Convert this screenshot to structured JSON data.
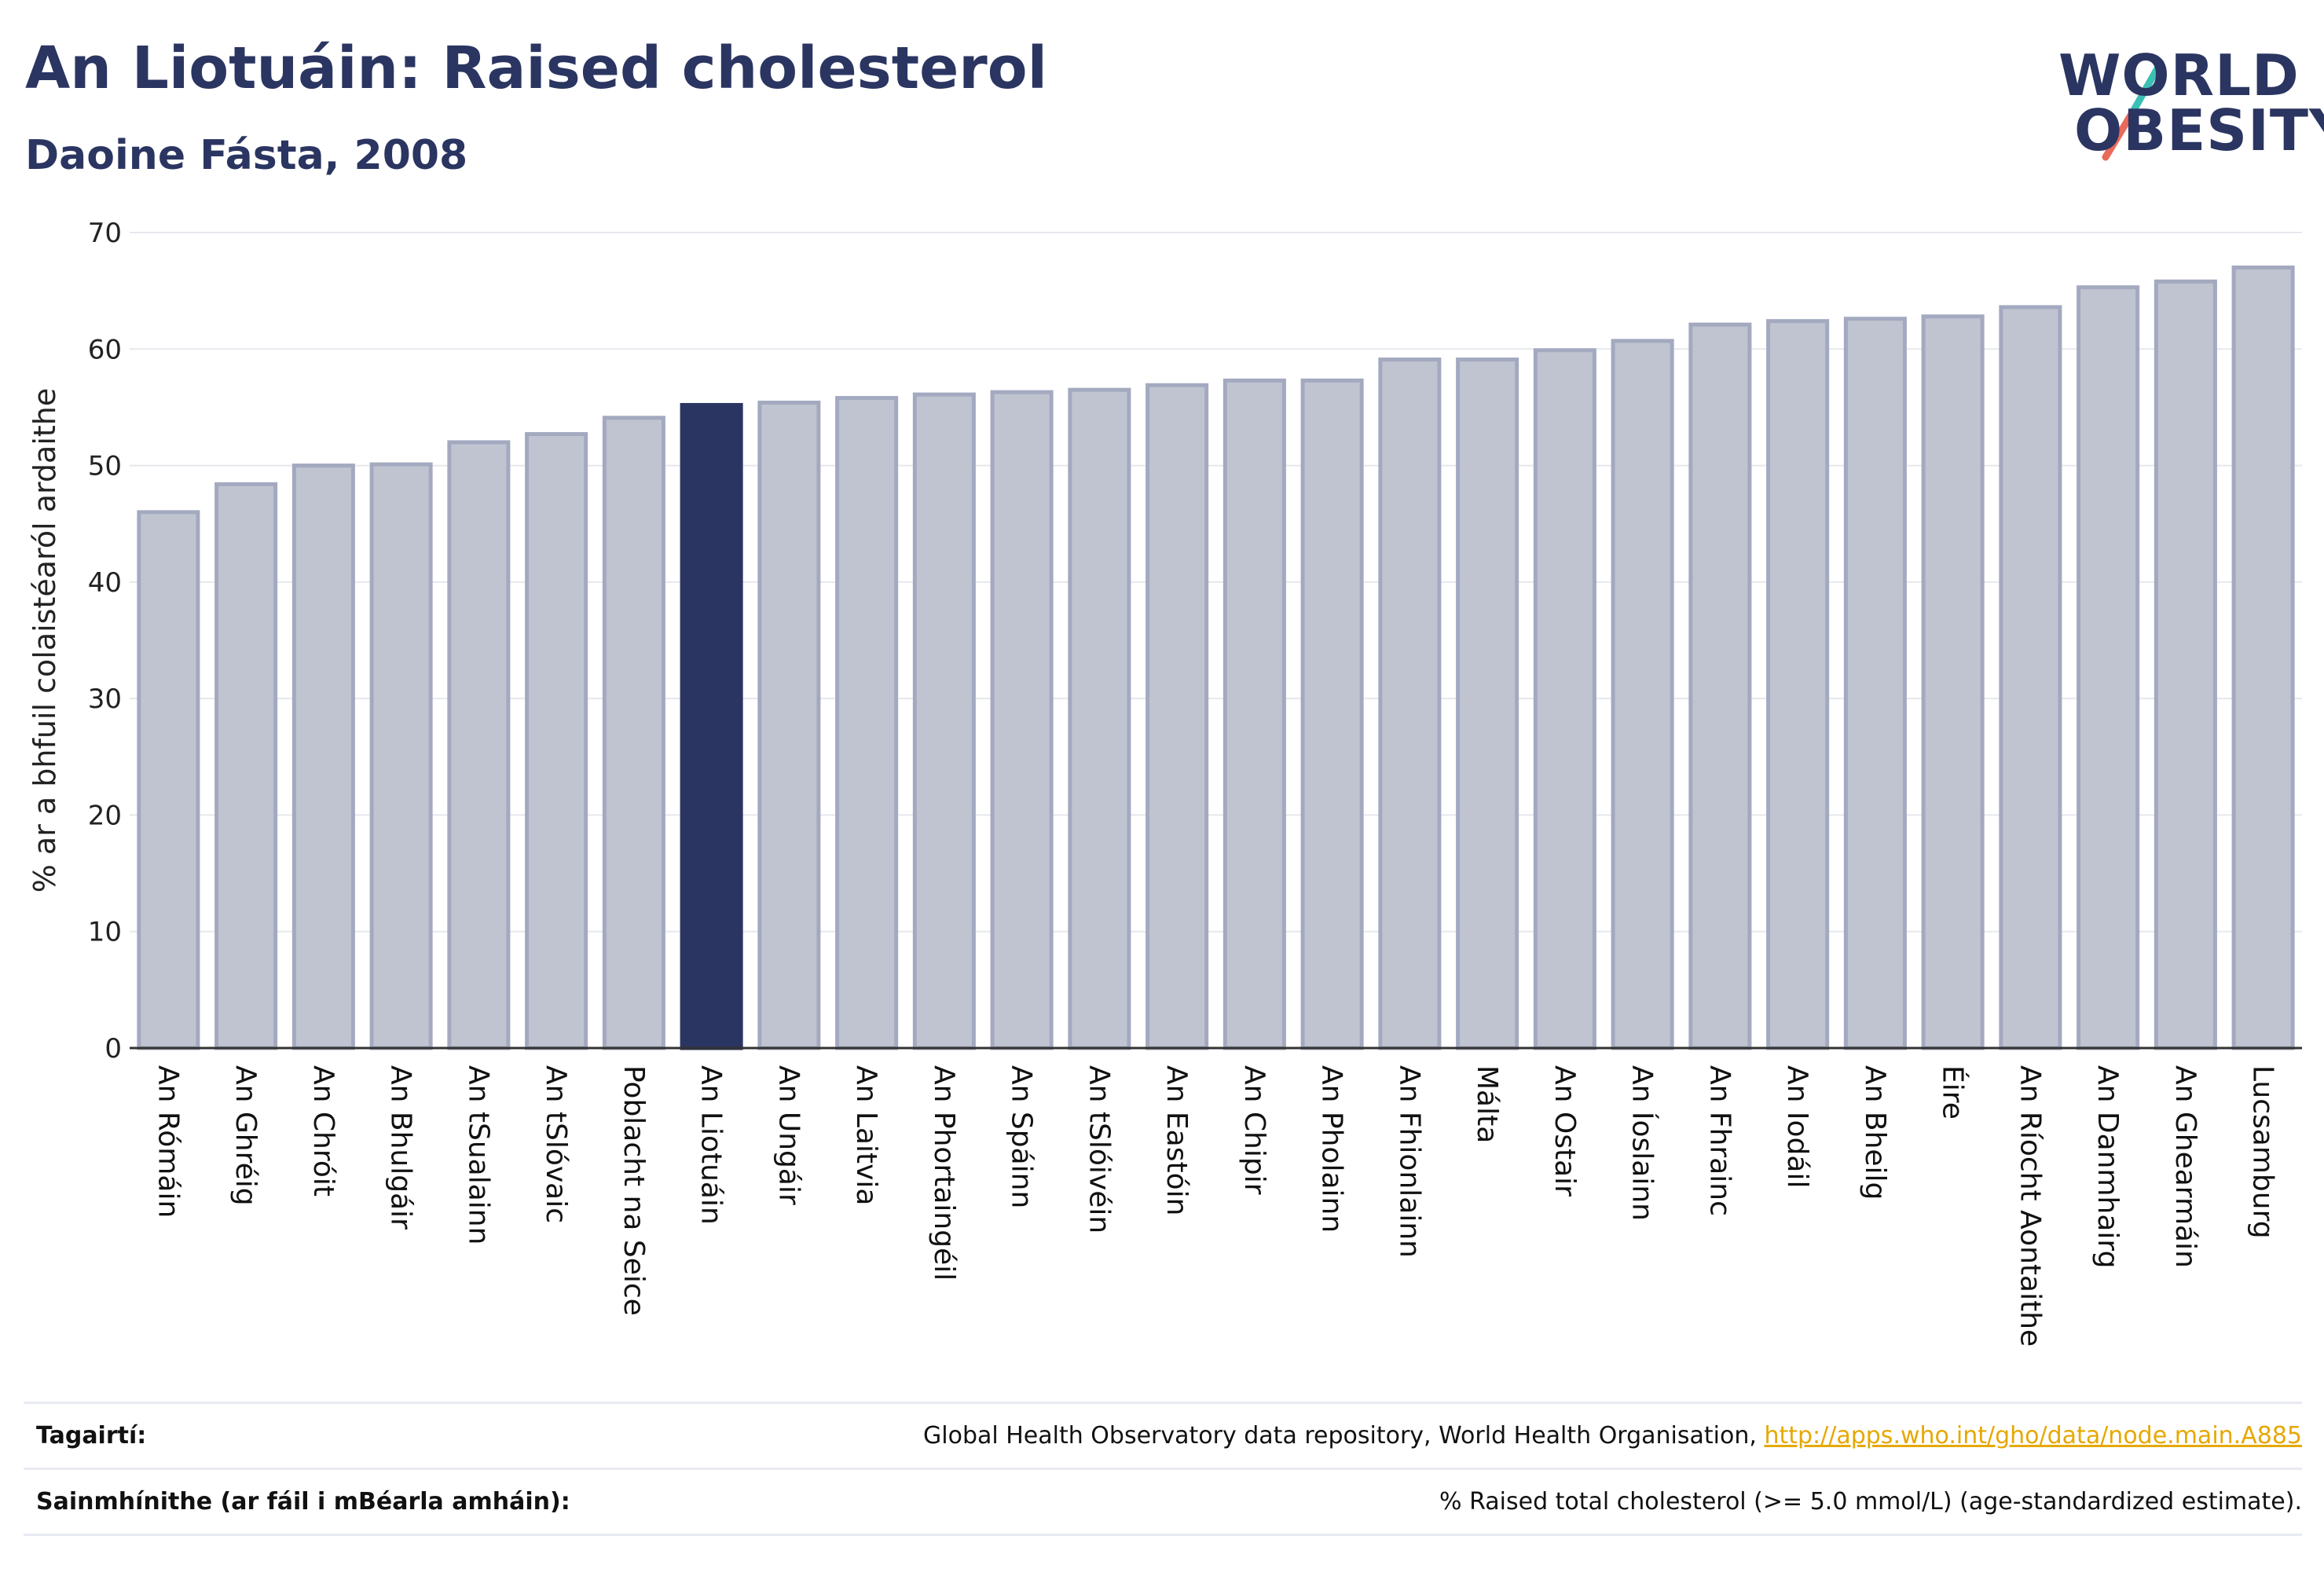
{
  "header": {
    "title": "An Liotuáin: Raised cholesterol",
    "subtitle": "Daoine Fásta, 2008"
  },
  "logo": {
    "line1": "WORLD",
    "line2": "OBESITY",
    "colors": {
      "text": "#2b3561",
      "slash_teal": "#3cc0b4",
      "slash_coral": "#e96a5a"
    }
  },
  "chart_data": {
    "type": "bar",
    "ylabel": "% ar a bhfuil colaistéaról ardaithe",
    "ylim": [
      0,
      70
    ],
    "yticks": [
      0,
      10,
      20,
      30,
      40,
      50,
      60,
      70
    ],
    "grid": true,
    "highlight": "An Liotuáin",
    "colors": {
      "bar": "#c0c4d1",
      "bar_border": "#a3a9bf",
      "highlight": "#2b3561",
      "grid": "#e6e8ee",
      "axis": "#333333"
    },
    "categories": [
      "An Rómáin",
      "An Ghréig",
      "An Chróit",
      "An Bhulgáir",
      "An tSualainn",
      "An tSlóvaic",
      "Poblacht na Seice",
      "An Liotuáin",
      "An Ungáir",
      "An Laitvia",
      "An Phortaingéil",
      "An Spáinn",
      "An tSlóivéin",
      "An Eastóin",
      "An Chipir",
      "An Pholainn",
      "An Fhionlainn",
      "Málta",
      "An Ostair",
      "An Íoslainn",
      "An Fhrainc",
      "An Iodáil",
      "An Bheilg",
      "Éire",
      "An Ríocht Aontaithe",
      "An Danmhairg",
      "An Ghearmáin",
      "Lucsamburg"
    ],
    "values": [
      46.0,
      48.4,
      50.0,
      50.1,
      52.0,
      52.7,
      54.1,
      55.2,
      55.4,
      55.8,
      56.1,
      56.3,
      56.5,
      56.9,
      57.3,
      57.3,
      59.1,
      59.1,
      59.9,
      60.7,
      62.1,
      62.4,
      62.6,
      62.8,
      63.6,
      65.3,
      65.8,
      67.0
    ]
  },
  "footer": {
    "references_label": "Tagairtí:",
    "references_text": "Global Health Observatory data repository, World Health Organisation, ",
    "references_link": "http://apps.who.int/gho/data/node.main.A885",
    "definitions_label": "Sainmhínithe (ar fáil i mBéarla amháin):",
    "definitions_text": "% Raised total cholesterol (>= 5.0 mmol/L) (age-standardized estimate)."
  }
}
